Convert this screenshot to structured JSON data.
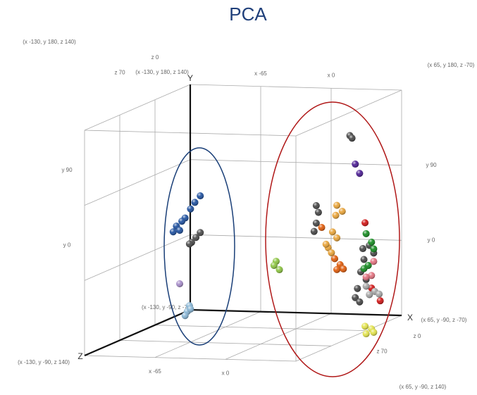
{
  "chart_data": {
    "type": "scatter3d",
    "title": "PCA",
    "axis_titles": {
      "x": "X",
      "y": "Y",
      "z": "Z"
    },
    "xlim": [
      -130,
      65
    ],
    "ylim": [
      -90,
      180
    ],
    "zlim": [
      -70,
      140
    ],
    "xticks": [
      {
        "value": -65,
        "label": "x -65"
      },
      {
        "value": 0,
        "label": "x 0"
      }
    ],
    "yticks": [
      {
        "value": 90,
        "label": "y 90"
      },
      {
        "value": 0,
        "label": "y 0"
      }
    ],
    "zticks": [
      {
        "value": 70,
        "label": "z 70"
      },
      {
        "value": 0,
        "label": "z 0"
      }
    ],
    "grid": true,
    "corner_labels": [
      "(x -130, y 180, z 140)",
      "(x -130, y 180, z 140)",
      "(x 65, y 180, z -70)",
      "(x -130, y -90, z -70)",
      "(x -130, y -90, z 140)",
      "(x 65, y -90, z -70)",
      "(x 65, y -90, z 140)"
    ],
    "series": [
      {
        "color": "#1d4f9e",
        "x": [
          -72,
          -77,
          -81,
          -86,
          -89,
          -94,
          -97,
          -91
        ],
        "y": [
          76,
          68,
          60,
          49,
          45,
          39,
          32,
          34
        ],
        "z": [
          35,
          35,
          35,
          35,
          35,
          35,
          35,
          35
        ]
      },
      {
        "color": "#4a4a4a",
        "x": [
          -72,
          -76,
          -80,
          -82
        ],
        "y": [
          32,
          26,
          20,
          18
        ],
        "z": [
          35,
          35,
          35,
          35
        ]
      },
      {
        "color": "#a58bc8",
        "x": [
          -91
        ],
        "y": [
          -30
        ],
        "z": [
          35
        ]
      },
      {
        "color": "#86b4d4",
        "x": [
          -82,
          -84,
          -86,
          -81
        ],
        "y": [
          -56,
          -63,
          -68,
          -60
        ],
        "z": [
          35,
          35,
          35,
          35
        ]
      },
      {
        "color": "#8cc440",
        "x": [
          -2,
          1,
          -4
        ],
        "y": [
          0,
          -10,
          -5
        ],
        "z": [
          35,
          35,
          35
        ]
      },
      {
        "color": "#e8a236",
        "x": [
          54,
          59,
          53,
          50,
          54,
          46,
          49,
          44
        ],
        "y": [
          69,
          62,
          57,
          37,
          30,
          18,
          12,
          22
        ],
        "z": [
          35,
          35,
          35,
          35,
          35,
          35,
          35,
          35
        ]
      },
      {
        "color": "#e05a08",
        "x": [
          40,
          52,
          57,
          60,
          54
        ],
        "y": [
          42,
          5,
          -2,
          -7,
          -8
        ],
        "z": [
          35,
          35,
          35,
          35,
          35
        ]
      },
      {
        "color": "#454545",
        "x": [
          35,
          37,
          35,
          33,
          66,
          68,
          78,
          79,
          76,
          81,
          73,
          71,
          75,
          84,
          88
        ],
        "y": [
          68,
          60,
          47,
          37,
          153,
          150,
          18,
          5,
          -10,
          -19,
          -30,
          -41,
          -46,
          22,
          13
        ],
        "z": [
          35,
          35,
          35,
          35,
          35,
          35,
          35,
          35,
          35,
          35,
          35,
          35,
          35,
          35,
          35
        ]
      },
      {
        "color": "#4a1c92",
        "x": [
          71,
          75
        ],
        "y": [
          119,
          108
        ],
        "z": [
          35,
          35
        ]
      },
      {
        "color": "#d01414",
        "x": [
          80,
          94,
          86
        ],
        "y": [
          49,
          -44,
          -29
        ],
        "z": [
          35,
          35,
          35
        ]
      },
      {
        "color": "#138a1e",
        "x": [
          81,
          86,
          88,
          79,
          83
        ],
        "y": [
          36,
          26,
          18,
          -6,
          -2
        ],
        "z": [
          35,
          35,
          35,
          35,
          35
        ]
      },
      {
        "color": "#e2707e",
        "x": [
          88,
          86,
          81
        ],
        "y": [
          3,
          -14,
          -16
        ],
        "z": [
          35,
          35,
          35
        ]
      },
      {
        "color": "#a4a4a4",
        "x": [
          89,
          84,
          81,
          93
        ],
        "y": [
          -33,
          -37,
          -27,
          -36
        ],
        "z": [
          35,
          35,
          35,
          35
        ]
      },
      {
        "color": "#e2e24a",
        "x": [
          80,
          86,
          81,
          88
        ],
        "y": [
          -75,
          -78,
          -84,
          -82
        ],
        "z": [
          35,
          35,
          35,
          35
        ]
      }
    ]
  }
}
